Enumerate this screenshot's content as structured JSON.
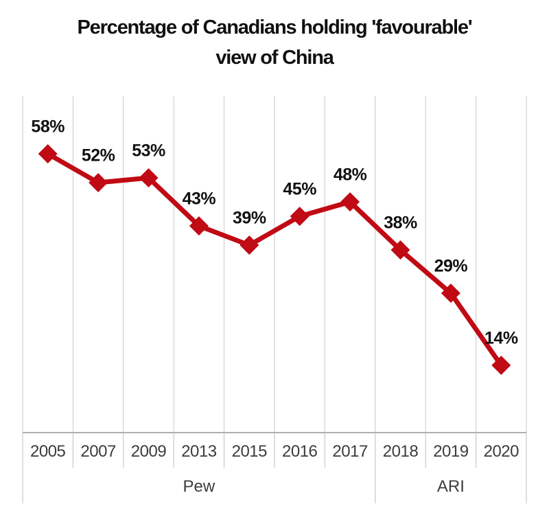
{
  "chart_data": {
    "type": "line",
    "title": "Percentage of Canadians holding 'favourable' view of China",
    "title_lines": [
      "Percentage of Canadians holding 'favourable'",
      "view of China"
    ],
    "categories": [
      "2005",
      "2007",
      "2009",
      "2013",
      "2015",
      "2016",
      "2017",
      "2018",
      "2019",
      "2020"
    ],
    "series": [
      {
        "values": [
          58,
          52,
          53,
          43,
          39,
          45,
          48,
          38,
          29,
          14
        ],
        "point_labels": [
          "58%",
          "52%",
          "53%",
          "43%",
          "39%",
          "45%",
          "48%",
          "38%",
          "29%",
          "14%"
        ],
        "color": "#C00A14",
        "marker": "diamond"
      }
    ],
    "category_groups": [
      {
        "label": "Pew",
        "start": 0,
        "end": 6
      },
      {
        "label": "ARI",
        "start": 7,
        "end": 9
      }
    ],
    "ylim": [
      0,
      70
    ],
    "grid": "vertical-only",
    "legend": "none",
    "colors": {
      "line": "#C00A14",
      "gridline": "#C8C8C8",
      "axis_line": "#AFAFAF",
      "separator": "#BDBDBD",
      "title_text": "#111111",
      "data_label_text": "#111111",
      "axis_text": "#3D3D3D",
      "background": "#FFFFFF"
    }
  }
}
